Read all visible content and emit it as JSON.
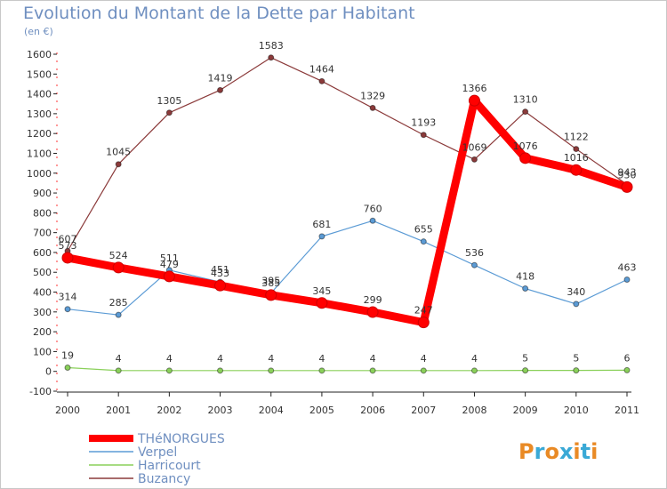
{
  "chart_data": {
    "type": "line",
    "title": "Evolution du Montant de la Dette par Habitant",
    "subtitle": "(en €)",
    "xlabel": "",
    "ylabel": "",
    "ylim": [
      -100,
      1600
    ],
    "yticks": [
      -100,
      0,
      100,
      200,
      300,
      400,
      500,
      600,
      700,
      800,
      900,
      1000,
      1100,
      1200,
      1300,
      1400,
      1500,
      1600
    ],
    "x": [
      "2000",
      "2001",
      "2002",
      "2003",
      "2004",
      "2005",
      "2006",
      "2007",
      "2008",
      "2009",
      "2010",
      "2011"
    ],
    "grid": false,
    "series": [
      {
        "name": "Buzancy",
        "color": "#8b3a3a",
        "values": [
          607,
          1045,
          1305,
          1419,
          1583,
          1464,
          1329,
          1193,
          1069,
          1310,
          1122,
          943
        ]
      },
      {
        "name": "Verpel",
        "color": "#5b9bd5",
        "values": [
          314,
          285,
          511,
          451,
          395,
          681,
          760,
          655,
          536,
          418,
          340,
          463
        ]
      },
      {
        "name": "Harricourt",
        "color": "#8ad05a",
        "values": [
          19,
          4,
          4,
          4,
          4,
          4,
          4,
          4,
          4,
          5,
          5,
          6
        ]
      },
      {
        "name": "THéNORGUES",
        "color": "#ff0000",
        "values": [
          573,
          524,
          479,
          433,
          385,
          345,
          299,
          247,
          1366,
          1076,
          1016,
          930
        ]
      }
    ],
    "legend": {
      "position": "bottom-left",
      "entries": [
        "THéNORGUES",
        "Verpel",
        "Harricourt",
        "Buzancy"
      ]
    }
  },
  "brand": {
    "text": "Proxiti"
  }
}
